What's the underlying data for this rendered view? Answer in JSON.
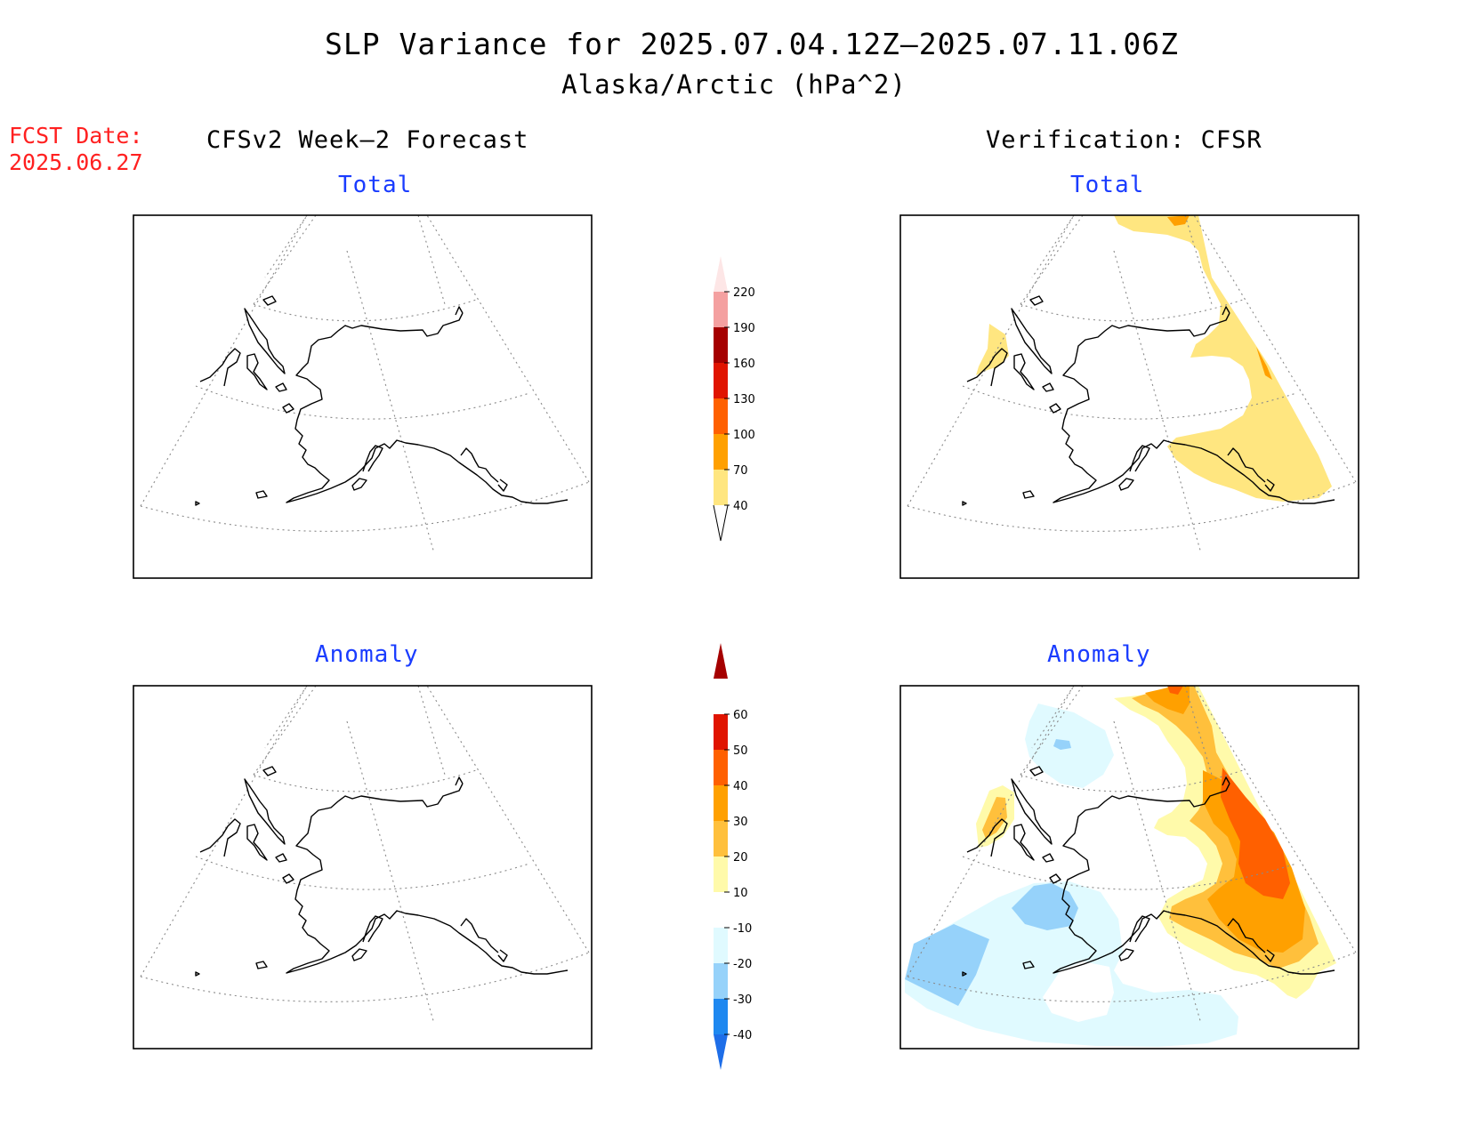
{
  "title": {
    "line1": "SLP Variance for 2025.07.04.12Z—2025.07.11.06Z",
    "line2": "Alaska/Arctic (hPa^2)"
  },
  "forecast_date": {
    "label": "FCST Date:",
    "value": "2025.06.27"
  },
  "columns": {
    "left": "CFSv2 Week—2 Forecast",
    "right": "Verification: CFSR"
  },
  "panels": {
    "fcst_total": "Total",
    "verif_total": "Total",
    "fcst_anomaly": "Anomaly",
    "verif_anomaly": "Anomaly"
  },
  "colorbars": {
    "total": {
      "levels": [
        "40",
        "70",
        "100",
        "130",
        "160",
        "190",
        "220"
      ],
      "colors": [
        "#ffe680",
        "#ffa000",
        "#ff6000",
        "#e01400",
        "#a50000",
        "#f4a0a0",
        "#fde6e6"
      ]
    },
    "anomaly": {
      "levels": [
        "-40",
        "-30",
        "-20",
        "-10",
        "10",
        "20",
        "30",
        "40",
        "50",
        "60"
      ],
      "colors": [
        "#1e6ee8",
        "#1e88f0",
        "#96d2fa",
        "#e0faff",
        "#ffffff",
        "#fffaaa",
        "#ffc03c",
        "#ffa000",
        "#ff6000",
        "#e01400",
        "#a50000"
      ]
    }
  },
  "shading_colors": {
    "total_40": "#ffe680",
    "total_70": "#ffa000",
    "anom_10": "#fffaaa",
    "anom_20": "#ffc03c",
    "anom_30": "#ffa000",
    "anom_40": "#ff6000",
    "anom_m10": "#e0faff",
    "anom_m20": "#96d2fa"
  }
}
